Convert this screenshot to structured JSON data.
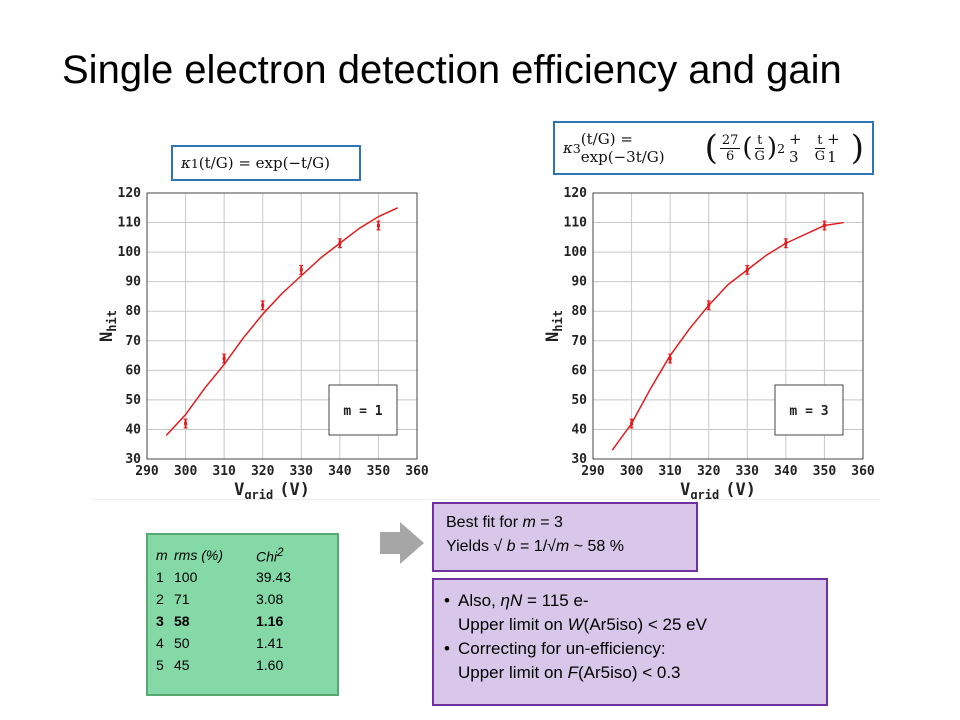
{
  "title": "Single electron detection efficiency and gain",
  "formula1": {
    "lhs": "κ",
    "sub": "1",
    "arg": "(t/G) = exp(−t/G)"
  },
  "formula2": {
    "lhs": "κ",
    "sub": "3",
    "arg": "(t/G) = exp(−3t/G)",
    "n1": "27",
    "d1": "6",
    "n2": "t",
    "d2": "G",
    "sq": "2",
    "plus": "+ 3",
    "n3": "t",
    "d3": "G",
    "tail": "+ 1"
  },
  "chart_data": [
    {
      "type": "scatter",
      "xlabel": "V",
      "xlabel_sub": "grid",
      "xlabel_unit": "(V)",
      "ylabel": "N",
      "ylabel_sub": "hit",
      "xlim": [
        290,
        360
      ],
      "ylim": [
        30,
        120
      ],
      "xticks": [
        290,
        300,
        310,
        320,
        330,
        340,
        350,
        360
      ],
      "yticks": [
        30,
        40,
        50,
        60,
        70,
        80,
        90,
        100,
        110,
        120
      ],
      "grid": true,
      "legend_text": "m = 1",
      "legend_position": "bottom-right",
      "series": [
        {
          "kind": "points",
          "color": "#e41a1c",
          "x": [
            300,
            310,
            320,
            330,
            340,
            350
          ],
          "y": [
            42,
            64,
            82,
            94,
            103,
            109
          ],
          "err": [
            1.5,
            1.5,
            1.5,
            1.5,
            1.5,
            1.5
          ]
        },
        {
          "kind": "line",
          "color": "#e41a1c",
          "x": [
            295,
            300,
            305,
            310,
            315,
            320,
            325,
            330,
            335,
            340,
            345,
            350,
            355
          ],
          "y": [
            38,
            45,
            54,
            62,
            71,
            79,
            86,
            92,
            98,
            103,
            108,
            112,
            115
          ]
        }
      ]
    },
    {
      "type": "scatter",
      "xlabel": "V",
      "xlabel_sub": "grid",
      "xlabel_unit": "(V)",
      "ylabel": "N",
      "ylabel_sub": "hit",
      "xlim": [
        290,
        360
      ],
      "ylim": [
        30,
        120
      ],
      "xticks": [
        290,
        300,
        310,
        320,
        330,
        340,
        350,
        360
      ],
      "yticks": [
        30,
        40,
        50,
        60,
        70,
        80,
        90,
        100,
        110,
        120
      ],
      "grid": true,
      "legend_text": "m = 3",
      "legend_position": "bottom-right",
      "series": [
        {
          "kind": "points",
          "color": "#e41a1c",
          "x": [
            300,
            310,
            320,
            330,
            340,
            350
          ],
          "y": [
            42,
            64,
            82,
            94,
            103,
            109
          ],
          "err": [
            1.5,
            1.5,
            1.5,
            1.5,
            1.5,
            1.5
          ]
        },
        {
          "kind": "line",
          "color": "#e41a1c",
          "x": [
            295,
            300,
            305,
            310,
            315,
            320,
            325,
            330,
            335,
            340,
            345,
            350,
            355
          ],
          "y": [
            33,
            42,
            54,
            65,
            74,
            82,
            89,
            94,
            99,
            103,
            106,
            109,
            110
          ]
        }
      ]
    }
  ],
  "table": {
    "headers": [
      "m",
      "rms (%)",
      "Chi"
    ],
    "header_sup": "2",
    "rows": [
      [
        "1",
        "100",
        "39.43"
      ],
      [
        "2",
        "71",
        "3.08"
      ],
      [
        "3",
        "58",
        "1.16"
      ],
      [
        "4",
        "50",
        "1.41"
      ],
      [
        "5",
        "45",
        "1.60"
      ]
    ],
    "bold_row": 2
  },
  "best": {
    "line1_pre": "Best fit for ",
    "line1_var": "m",
    "line1_post": " = 3",
    "line2_pre": "Yields √ ",
    "line2_var1": "b",
    "line2_mid": " = 1/√",
    "line2_var2": "m",
    "line2_post": " ~ 58 %"
  },
  "also": {
    "b1_pre": "Also, ",
    "b1_var": "ηN",
    "b1_post": " =  115 e-",
    "b1_l2_pre": "Upper limit on ",
    "b1_l2_var": "W",
    "b1_l2_post": "(Ar5iso) < 25 eV",
    "b2": "Correcting for un-efficiency:",
    "b2_l2_pre": "Upper limit on ",
    "b2_l2_var": "F",
    "b2_l2_post": "(Ar5iso) < 0.3"
  },
  "colors": {
    "table_bg": "#84d9a7",
    "box_bg": "#d9c7ea",
    "box_border": "#7030a0",
    "formula_border": "#2e75b6",
    "arrow": "#a6a6a6"
  }
}
